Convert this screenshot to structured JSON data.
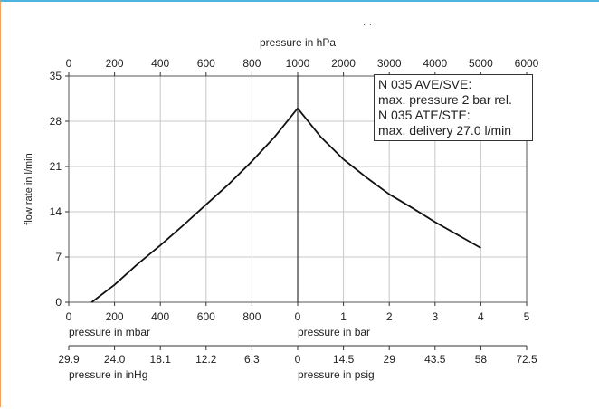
{
  "chart_data": {
    "type": "line",
    "ylabel": "flow rate in l/min",
    "ylim": [
      0,
      35
    ],
    "yticks": [
      0,
      7,
      14,
      21,
      28,
      35
    ],
    "top_axis": {
      "label": "pressure in hPa",
      "left_ticks": [
        "0",
        "200",
        "400",
        "600",
        "800",
        "1000"
      ],
      "right_ticks": [
        "2000",
        "3000",
        "4000",
        "5000",
        "6000"
      ]
    },
    "vacuum_axes": {
      "mbar": {
        "label": "pressure in mbar",
        "ticks": [
          "0",
          "200",
          "400",
          "600",
          "800",
          "0"
        ]
      },
      "inHg": {
        "label": "pressure in inHg",
        "ticks": [
          "29.9",
          "24.0",
          "18.1",
          "12.2",
          "6.3",
          "0"
        ]
      }
    },
    "pressure_axes": {
      "bar": {
        "label": "pressure in bar",
        "ticks": [
          "1",
          "2",
          "3",
          "4",
          "5"
        ],
        "range": [
          0,
          5
        ]
      },
      "psig": {
        "label": "pressure in psig",
        "ticks": [
          "14.5",
          "29",
          "43.5",
          "58",
          "72.5"
        ]
      }
    },
    "series": [
      {
        "segment": "vacuum",
        "x_unit": "mbar absolute",
        "x": [
          100,
          200,
          300,
          400,
          500,
          600,
          700,
          800,
          900,
          1000
        ],
        "y": [
          0,
          2.7,
          5.9,
          8.8,
          11.9,
          15.1,
          18.3,
          21.8,
          25.6,
          30.0
        ]
      },
      {
        "segment": "pressure",
        "x_unit": "bar",
        "x": [
          0,
          0.5,
          1.0,
          1.5,
          2.0,
          2.5,
          3.0,
          3.5,
          4.0
        ],
        "y": [
          30.0,
          25.6,
          22.1,
          19.3,
          16.7,
          14.6,
          12.4,
          10.4,
          8.4
        ]
      }
    ],
    "annotation": [
      "N 035 AVE/SVE:",
      "max. pressure 2 bar rel.",
      "N 035 ATE/STE:",
      "max. delivery 27.0 l/min"
    ],
    "header_marks": "ˏ ˎ",
    "grid": true
  }
}
